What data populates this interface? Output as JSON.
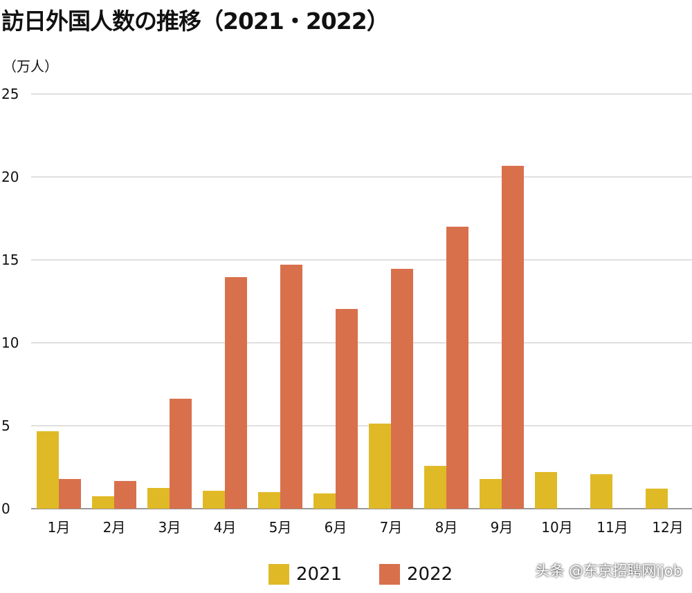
{
  "chart_data": {
    "type": "bar",
    "title": "訪日外国人数の推移（2021・2022）",
    "ylabel": "（万人）",
    "xlabel": "",
    "categories": [
      "1月",
      "2月",
      "3月",
      "4月",
      "5月",
      "6月",
      "7月",
      "8月",
      "9月",
      "10月",
      "11月",
      "12月"
    ],
    "series": [
      {
        "name": "2021",
        "color": "#E0B926",
        "values": [
          4.67,
          0.75,
          1.25,
          1.08,
          1.0,
          0.92,
          5.13,
          2.58,
          1.79,
          2.21,
          2.08,
          1.21
        ]
      },
      {
        "name": "2022",
        "color": "#D8704C",
        "values": [
          1.79,
          1.67,
          6.63,
          13.96,
          14.71,
          12.04,
          14.46,
          17.0,
          20.67,
          null,
          null,
          null
        ]
      }
    ],
    "ylim": [
      0,
      25
    ],
    "yticks": [
      0,
      5,
      10,
      15,
      20,
      25
    ],
    "grid": true,
    "legend_position": "bottom"
  },
  "watermark": "头条 @东京招聘网ijob"
}
